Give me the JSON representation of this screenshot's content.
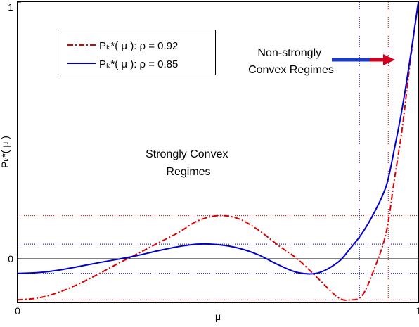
{
  "chart_data": {
    "type": "line",
    "xlabel": "μ",
    "ylabel": "Pₖ*( μ )",
    "xlim": [
      0,
      1
    ],
    "ylim": [
      -0.17,
      1
    ],
    "x_ticks": [
      {
        "value": 0,
        "label": "0"
      },
      {
        "value": 1,
        "label": "1"
      }
    ],
    "y_ticks": [
      {
        "value": 0,
        "label": "0"
      },
      {
        "value": 1,
        "label": "1"
      }
    ],
    "series": [
      {
        "name": "Pₖ*( μ ): ρ = 0.92",
        "color": "#dd0000",
        "dash": "dashdot",
        "x": [
          0.0,
          0.05,
          0.1,
          0.15,
          0.2,
          0.25,
          0.3,
          0.35,
          0.4,
          0.45,
          0.5,
          0.55,
          0.6,
          0.65,
          0.7,
          0.75,
          0.8,
          0.83,
          0.86,
          0.89,
          0.92,
          0.94,
          0.96,
          0.98,
          1.0
        ],
        "y": [
          -0.16,
          -0.153,
          -0.132,
          -0.1,
          -0.061,
          -0.019,
          0.02,
          0.061,
          0.101,
          0.148,
          0.168,
          0.157,
          0.113,
          0.053,
          -0.003,
          -0.077,
          -0.151,
          -0.16,
          -0.143,
          -0.04,
          0.103,
          0.306,
          0.51,
          0.77,
          1.0
        ]
      },
      {
        "name": "Pₖ*( μ ): ρ = 0.85",
        "color": "#0000cc",
        "dash": "solid",
        "x": [
          0.0,
          0.05,
          0.1,
          0.15,
          0.2,
          0.25,
          0.3,
          0.35,
          0.4,
          0.45,
          0.5,
          0.55,
          0.6,
          0.65,
          0.7,
          0.75,
          0.8,
          0.83,
          0.86,
          0.89,
          0.92,
          0.94,
          0.96,
          0.98,
          1.0
        ],
        "y": [
          -0.057,
          -0.054,
          -0.045,
          -0.031,
          -0.016,
          -0.002,
          0.013,
          0.031,
          0.047,
          0.057,
          0.055,
          0.042,
          0.016,
          -0.023,
          -0.054,
          -0.055,
          -0.013,
          0.04,
          0.1,
          0.18,
          0.284,
          0.426,
          0.588,
          0.784,
          1.0
        ]
      }
    ],
    "reference_lines": [
      {
        "orientation": "horizontal",
        "value": 0,
        "color": "#000000",
        "style": "solid"
      },
      {
        "orientation": "horizontal",
        "value": 0.168,
        "color": "#dd0000",
        "style": "dotted"
      },
      {
        "orientation": "horizontal",
        "value": -0.16,
        "color": "#dd0000",
        "style": "dotted"
      },
      {
        "orientation": "horizontal",
        "value": 0.057,
        "color": "#0000cc",
        "style": "dotted"
      },
      {
        "orientation": "horizontal",
        "value": -0.057,
        "color": "#0000cc",
        "style": "dotted"
      },
      {
        "orientation": "vertical",
        "value": 0.853,
        "color": "#0000cc",
        "style": "dotted"
      },
      {
        "orientation": "vertical",
        "value": 0.925,
        "color": "#dd0000",
        "style": "dotted"
      }
    ],
    "annotations": [
      {
        "text_lines": [
          "Strongly Convex",
          "Regimes"
        ]
      },
      {
        "text_lines": [
          "Non-strongly",
          "Convex Regimes"
        ]
      }
    ],
    "legend_position": "top-left",
    "grid": false,
    "arrow_colors": [
      "#0000cc",
      "#dd0000"
    ]
  }
}
